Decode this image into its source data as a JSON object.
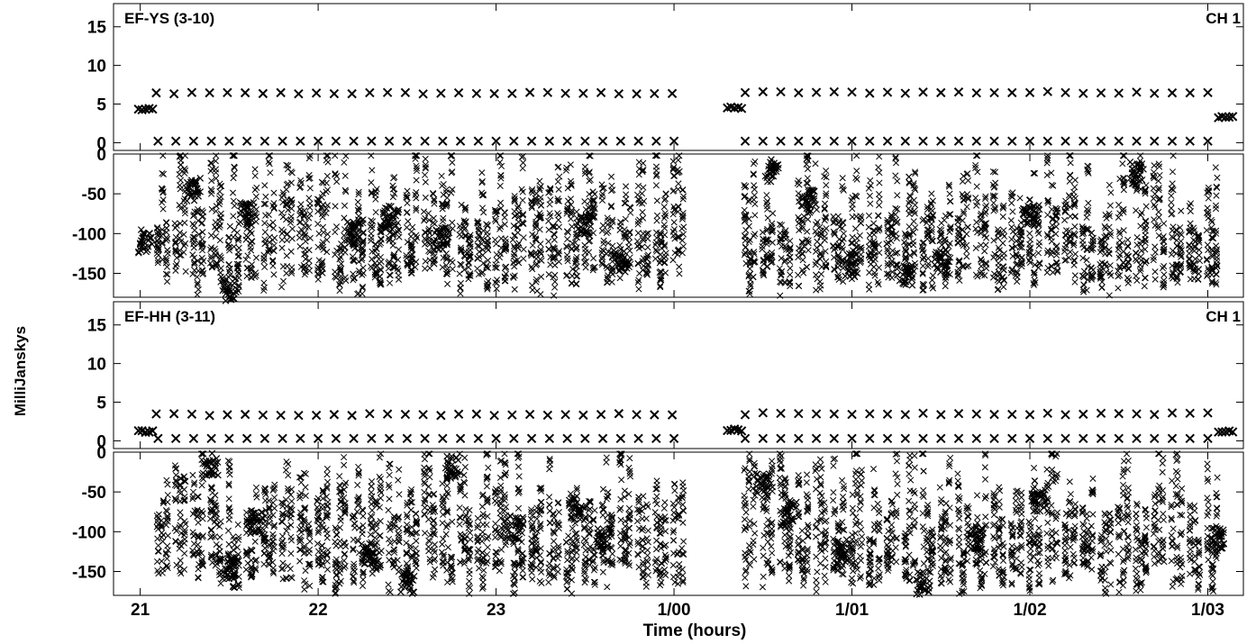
{
  "figure": {
    "xlabel": "Time (hours)",
    "ylabel": "MilliJanskys",
    "x_ticks": [
      {
        "value": 21,
        "label": "21"
      },
      {
        "value": 22,
        "label": "22"
      },
      {
        "value": 23,
        "label": "23"
      },
      {
        "value": 24,
        "label": "1/00"
      },
      {
        "value": 25,
        "label": "1/01"
      },
      {
        "value": 26,
        "label": "1/02"
      },
      {
        "value": 27,
        "label": "1/03"
      }
    ],
    "xlim": [
      20.85,
      27.2
    ]
  },
  "chart_data": [
    {
      "type": "scatter",
      "title": "EF-YS (3-10)",
      "channel_label": "CH 1",
      "marker": "x",
      "upper_panel": {
        "ylabel": "",
        "ylim": [
          -1,
          18
        ],
        "ticks": [
          0,
          5,
          10,
          15
        ],
        "series": {
          "amplitude_scans": [
            {
              "x": [
                20.99,
                21.08
              ],
              "y": 4.3
            },
            {
              "x": [
                21.09,
                24.05
              ],
              "y": 6.4
            },
            {
              "x": [
                24.3,
                24.38
              ],
              "y": 4.5
            },
            {
              "x": [
                24.4,
                27.05
              ],
              "y": 6.5
            },
            {
              "x": [
                27.06,
                27.15
              ],
              "y": 3.3
            }
          ],
          "zero_scans": {
            "x": [
              21.1,
              27.1
            ],
            "y": 0.2,
            "flags_y": 1.0
          }
        }
      },
      "lower_panel": {
        "ylim": [
          -180,
          0
        ],
        "ticks": [
          -150,
          -100,
          -50,
          0
        ],
        "phase_range": [
          -180,
          0
        ],
        "dense_clusters": [
          {
            "x": 21.03,
            "y": -110
          },
          {
            "x": 21.3,
            "y": -45
          },
          {
            "x": 21.5,
            "y": -170
          },
          {
            "x": 21.6,
            "y": -75
          },
          {
            "x": 22.2,
            "y": -100
          },
          {
            "x": 22.4,
            "y": -80
          },
          {
            "x": 22.7,
            "y": -105
          },
          {
            "x": 23.5,
            "y": -90
          },
          {
            "x": 23.7,
            "y": -135
          },
          {
            "x": 24.55,
            "y": -20
          },
          {
            "x": 24.75,
            "y": -60
          },
          {
            "x": 25.0,
            "y": -140
          },
          {
            "x": 25.3,
            "y": -150
          },
          {
            "x": 25.5,
            "y": -135
          },
          {
            "x": 26.0,
            "y": -80
          },
          {
            "x": 26.6,
            "y": -25
          }
        ],
        "scan_gap": [
          24.05,
          24.3
        ]
      }
    },
    {
      "type": "scatter",
      "title": "EF-HH (3-11)",
      "channel_label": "CH 1",
      "marker": "x",
      "upper_panel": {
        "ylabel": "",
        "ylim": [
          -1,
          18
        ],
        "ticks": [
          0,
          5,
          10,
          15
        ],
        "series": {
          "amplitude_scans": [
            {
              "x": [
                20.99,
                21.08
              ],
              "y": 1.2
            },
            {
              "x": [
                21.09,
                24.05
              ],
              "y": 3.4
            },
            {
              "x": [
                24.3,
                24.38
              ],
              "y": 1.4
            },
            {
              "x": [
                24.4,
                27.05
              ],
              "y": 3.5
            },
            {
              "x": [
                27.06,
                27.15
              ],
              "y": 1.2
            }
          ],
          "zero_scans": {
            "x": [
              21.1,
              27.1
            ],
            "y": 0.3,
            "flags_y": 0.6
          }
        }
      },
      "lower_panel": {
        "ylim": [
          -180,
          0
        ],
        "ticks": [
          -150,
          -100,
          -50,
          0
        ],
        "phase_range": [
          -180,
          0
        ],
        "dense_clusters": [
          {
            "x": 21.4,
            "y": -15
          },
          {
            "x": 21.5,
            "y": -145
          },
          {
            "x": 21.65,
            "y": -90
          },
          {
            "x": 22.3,
            "y": -130
          },
          {
            "x": 22.5,
            "y": -165
          },
          {
            "x": 22.75,
            "y": -20
          },
          {
            "x": 23.1,
            "y": -95
          },
          {
            "x": 23.45,
            "y": -70
          },
          {
            "x": 23.6,
            "y": -110
          },
          {
            "x": 24.5,
            "y": -40
          },
          {
            "x": 24.65,
            "y": -75
          },
          {
            "x": 24.95,
            "y": -125
          },
          {
            "x": 25.4,
            "y": -165
          },
          {
            "x": 25.7,
            "y": -110
          },
          {
            "x": 26.05,
            "y": -60
          },
          {
            "x": 27.05,
            "y": -110
          }
        ],
        "scan_gap": [
          24.05,
          24.3
        ]
      }
    }
  ]
}
